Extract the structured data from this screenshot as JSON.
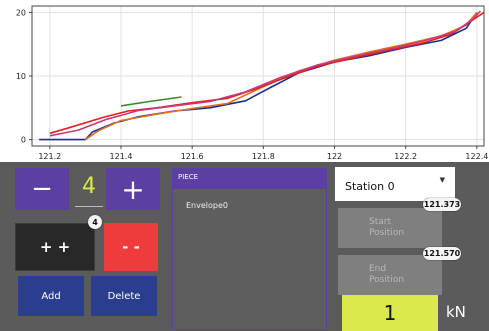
{
  "chart_data": {
    "type": "line",
    "xlim": [
      121.15,
      122.42
    ],
    "ylim": [
      -1,
      21
    ],
    "x_ticks": [
      "121.2",
      "121.4",
      "121.6",
      "121.8",
      "122",
      "122.2",
      "122.4"
    ],
    "y_ticks": [
      "0",
      "10",
      "20"
    ],
    "grid": true,
    "series": [
      {
        "color": "#1f2e8a",
        "points": [
          [
            121.17,
            0
          ],
          [
            121.3,
            0
          ],
          [
            121.32,
            1.2
          ],
          [
            121.38,
            2.6
          ],
          [
            121.45,
            3.6
          ],
          [
            121.55,
            4.5
          ],
          [
            121.65,
            5.0
          ],
          [
            121.75,
            6.1
          ],
          [
            121.82,
            8.2
          ],
          [
            121.9,
            10.5
          ],
          [
            122.0,
            12.2
          ],
          [
            122.1,
            13.2
          ],
          [
            122.2,
            14.5
          ],
          [
            122.3,
            15.6
          ],
          [
            122.37,
            17.5
          ],
          [
            122.4,
            20
          ]
        ]
      },
      {
        "color": "#e07020",
        "points": [
          [
            121.3,
            0
          ],
          [
            121.34,
            1.5
          ],
          [
            121.4,
            3.0
          ],
          [
            121.5,
            4.0
          ],
          [
            121.6,
            4.9
          ],
          [
            121.7,
            5.7
          ],
          [
            121.8,
            8.3
          ],
          [
            121.9,
            10.8
          ],
          [
            122.0,
            12.5
          ],
          [
            122.1,
            13.8
          ],
          [
            122.2,
            15.0
          ],
          [
            122.3,
            16.3
          ],
          [
            122.37,
            18
          ],
          [
            122.4,
            20
          ]
        ]
      },
      {
        "color": "#e02020",
        "points": [
          [
            121.2,
            1.0
          ],
          [
            121.25,
            1.8
          ],
          [
            121.35,
            3.5
          ],
          [
            121.42,
            4.5
          ],
          [
            121.5,
            5.0
          ],
          [
            121.6,
            5.8
          ],
          [
            121.7,
            6.5
          ],
          [
            121.78,
            8.0
          ],
          [
            121.85,
            9.5
          ],
          [
            121.95,
            11.5
          ],
          [
            122.05,
            12.8
          ],
          [
            122.15,
            14.0
          ],
          [
            122.25,
            15.2
          ],
          [
            122.33,
            16.6
          ],
          [
            122.38,
            18.5
          ],
          [
            122.42,
            20
          ]
        ]
      },
      {
        "color": "#c83a78",
        "points": [
          [
            121.2,
            0.6
          ],
          [
            121.28,
            1.5
          ],
          [
            121.36,
            3.2
          ],
          [
            121.45,
            4.6
          ],
          [
            121.55,
            5.3
          ],
          [
            121.65,
            6.0
          ],
          [
            121.75,
            7.5
          ],
          [
            121.85,
            9.8
          ],
          [
            121.95,
            11.7
          ],
          [
            122.05,
            13.0
          ],
          [
            122.15,
            14.2
          ],
          [
            122.25,
            15.5
          ],
          [
            122.34,
            17.0
          ],
          [
            122.39,
            19.0
          ],
          [
            122.41,
            20.2
          ]
        ]
      },
      {
        "color": "#3a8a2a",
        "points": [
          [
            121.4,
            5.3
          ],
          [
            121.48,
            6.0
          ],
          [
            121.57,
            6.7
          ]
        ]
      }
    ]
  },
  "controls": {
    "minus_label": "−",
    "plus_label": "+",
    "counter_value": "4",
    "double_plus_label": "+ +",
    "double_minus_label": "- -",
    "double_plus_badge": "4",
    "add_label": "Add",
    "delete_label": "Delete"
  },
  "piece": {
    "header": "PIECE",
    "items": [
      "Envelope0"
    ]
  },
  "station": {
    "selected": "Station 0",
    "start_label_1": "Start",
    "start_label_2": "Position",
    "start_value": "121.373",
    "end_label_1": "End",
    "end_label_2": "Position",
    "end_value": "121.570",
    "force_value": "1",
    "force_unit": "kN"
  },
  "colors": {
    "accent_purple": "#5b3fa3",
    "red": "#ef3b3b",
    "navy": "#2a3d8f",
    "value_yellow": "#d9e84a",
    "counter_yellow": "#d9e84a"
  }
}
